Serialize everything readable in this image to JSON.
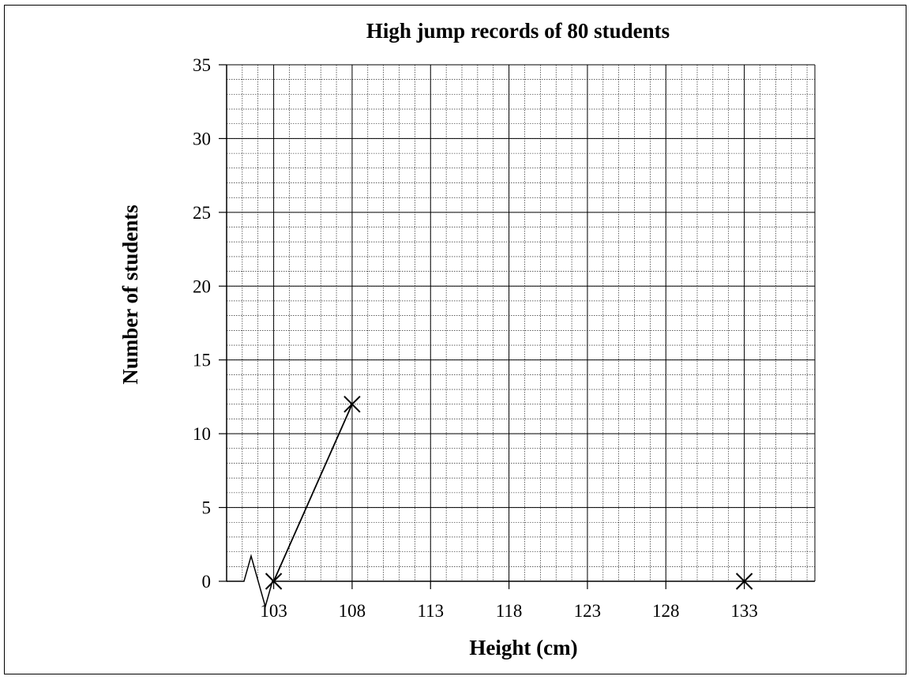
{
  "chart_data": {
    "type": "line",
    "title": "High jump records of 80 students",
    "xlabel": "Height (cm)",
    "ylabel": "Number of students",
    "x_ticks": [
      "103",
      "108",
      "113",
      "118",
      "123",
      "128",
      "133"
    ],
    "y_ticks": [
      "0",
      "5",
      "10",
      "15",
      "20",
      "25",
      "30",
      "35"
    ],
    "xlim": [
      100,
      137.5
    ],
    "ylim": [
      0,
      35
    ],
    "x_minor_step": 1,
    "y_minor_step": 1,
    "axis_break": true,
    "grid": true,
    "series": [
      {
        "points": [
          {
            "x": 103,
            "y": 0
          },
          {
            "x": 108,
            "y": 12
          }
        ],
        "connected": true
      },
      {
        "points": [
          {
            "x": 133,
            "y": 0
          }
        ],
        "connected": false
      }
    ]
  }
}
